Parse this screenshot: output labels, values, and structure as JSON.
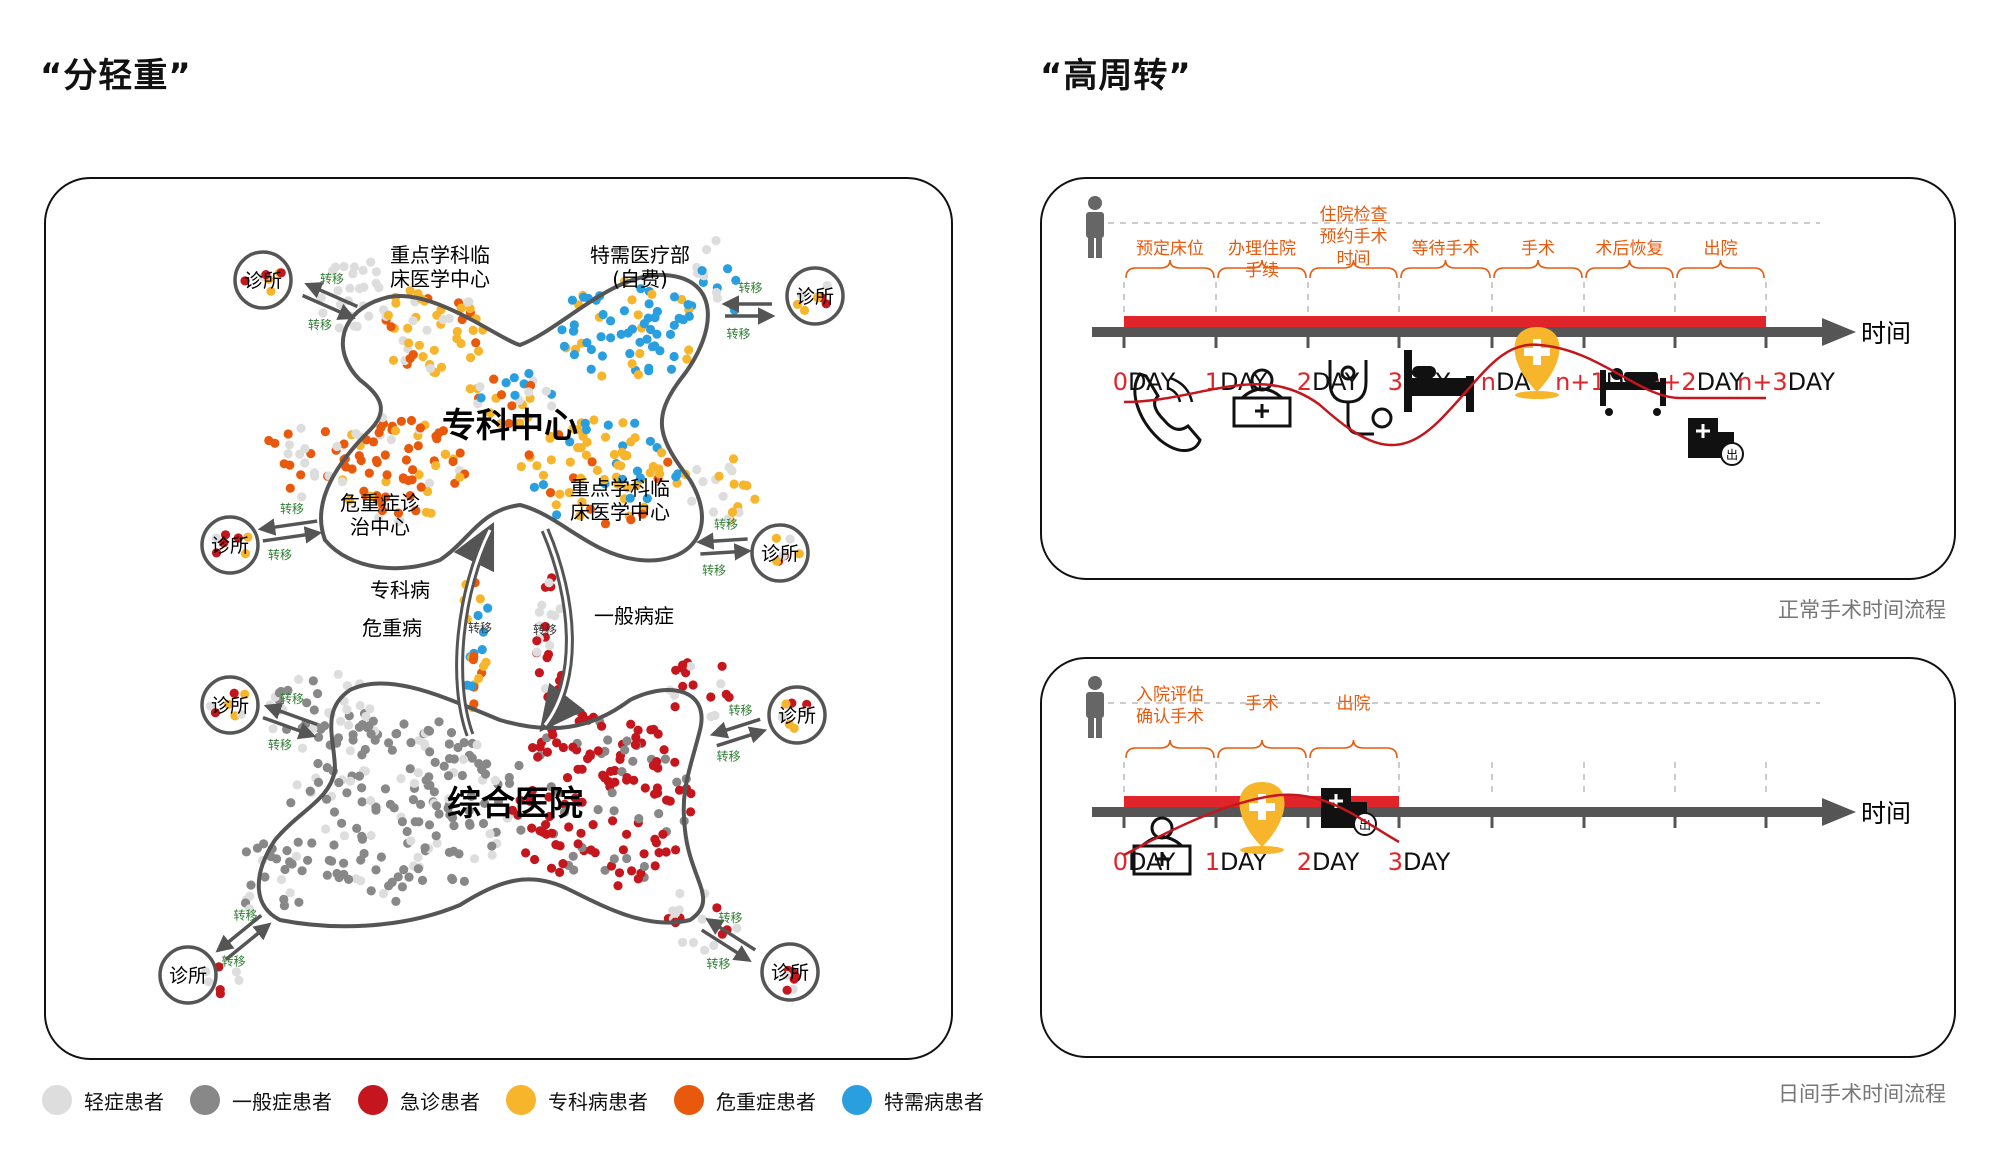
{
  "titles": {
    "left": "“分轻重”",
    "right": "“高周转”"
  },
  "colors": {
    "light": "#dddddd",
    "general": "#888888",
    "emergency": "#c4161c",
    "specialty": "#f7b52c",
    "critical": "#e8590c",
    "vip": "#2a9fe0",
    "timeline_red": "#e0252a",
    "orange_text": "#e8590c",
    "arrow_gray": "#555555"
  },
  "left": {
    "specialty_center": "专科中心",
    "general_hospital": "综合医院",
    "key_clinical_1": "重点学科临床医学中心",
    "vip_dept": "特需医疗部(自费)",
    "critical_center": "危重症诊治中心",
    "key_clinical_2": "重点学科临床医学中心",
    "specialty_disease": "专科病",
    "critical_disease": "危重病",
    "general_disease": "一般病症",
    "clinic": "诊所",
    "transfer": "转移"
  },
  "legend": [
    {
      "label": "轻症患者",
      "color": "#dddddd"
    },
    {
      "label": "一般症患者",
      "color": "#888888"
    },
    {
      "label": "急诊患者",
      "color": "#c4161c"
    },
    {
      "label": "专科病患者",
      "color": "#f7b52c"
    },
    {
      "label": "危重症患者",
      "color": "#e8590c"
    },
    {
      "label": "特需病患者",
      "color": "#2a9fe0"
    }
  ],
  "normal": {
    "caption": "正常手术时间流程",
    "steps": [
      "预定床位",
      "办理住院手续",
      "住院检查预约手术时间",
      "等待手术",
      "手术",
      "术后恢复",
      "出院"
    ],
    "days": [
      "0DAY",
      "1DAY",
      "2DAY",
      "3DAY",
      "nDAY",
      "n+1DAY",
      "n+2DAY",
      "n+3DAY"
    ],
    "time_label": "时间"
  },
  "day": {
    "caption": "日间手术时间流程",
    "steps": [
      "入院评估确认手术",
      "手术",
      "出院"
    ],
    "days": [
      "0DAY",
      "1DAY",
      "2DAY",
      "3DAY"
    ],
    "time_label": "时间"
  }
}
